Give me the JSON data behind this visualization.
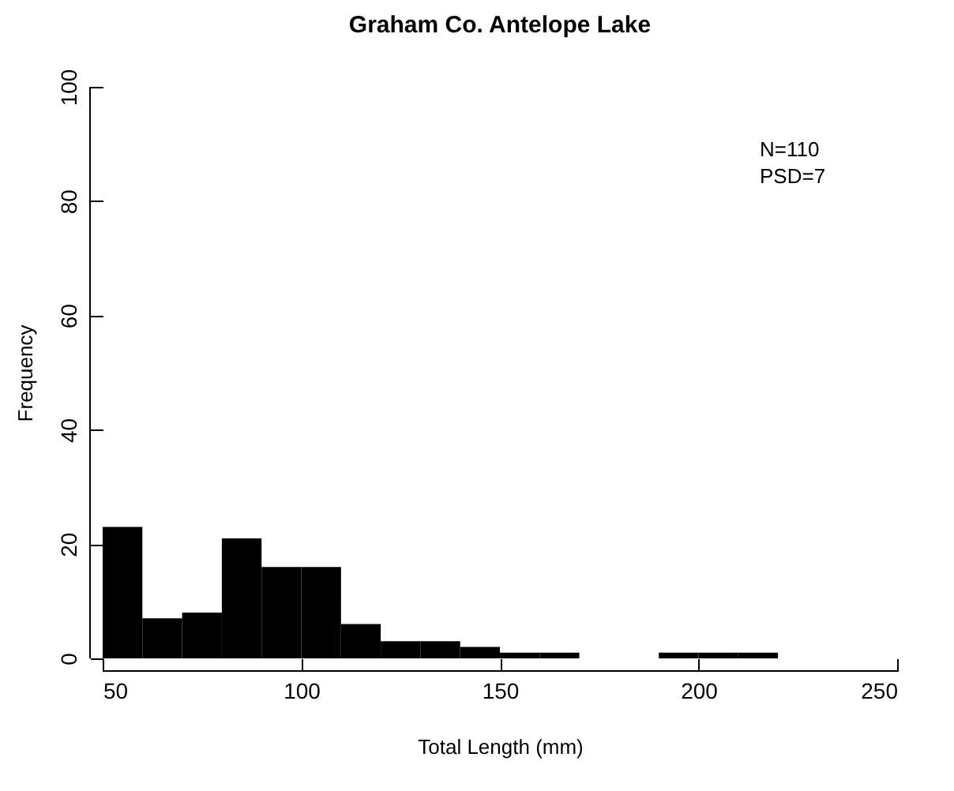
{
  "chart_data": {
    "type": "histogram",
    "title": "Graham Co. Antelope Lake",
    "xlabel": "Total Length (mm)",
    "ylabel": "Frequency",
    "bins": [
      50,
      60,
      70,
      80,
      90,
      100,
      110,
      120,
      130,
      140,
      150,
      160,
      170,
      180,
      190,
      200,
      210,
      220
    ],
    "values": [
      23,
      7,
      8,
      21,
      16,
      16,
      6,
      3,
      3,
      2,
      1,
      1,
      0,
      0,
      1,
      1,
      1
    ],
    "color": "#000000",
    "xlim": [
      50,
      250
    ],
    "xticks": [
      50,
      100,
      150,
      200,
      250
    ],
    "ylim": [
      0,
      100
    ],
    "yticks": [
      0,
      20,
      40,
      60,
      80,
      100
    ],
    "grid": false,
    "annotations": [
      "N=110",
      "PSD=7"
    ]
  }
}
